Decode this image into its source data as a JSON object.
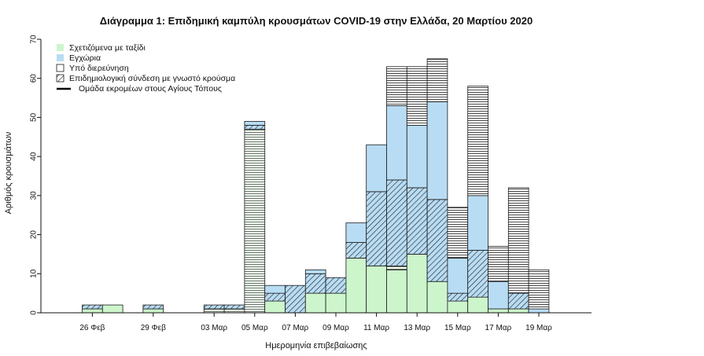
{
  "colors": {
    "travel": "#ccf5cc",
    "local": "#b8dcf3",
    "investigation": "#ffffff",
    "epilink": "#b8dcf3",
    "cluster": "#000000",
    "line": "#1a1a1a"
  },
  "chart_data": {
    "type": "bar",
    "stacked": true,
    "title": "Διάγραμμα 1: Επιδημική καμπύλη κρουσμάτων COVID-19 στην Ελλάδα, 20 Μαρτίου 2020",
    "xlabel": "Ημερομηνία επιβεβαίωσης",
    "ylabel": "Αριθμός κρουσμάτων",
    "ylim": [
      0,
      70
    ],
    "yticks": [
      0,
      10,
      20,
      30,
      40,
      50,
      60,
      70
    ],
    "xtick_labels": [
      {
        "day": 0,
        "label": "26 Φεβ"
      },
      {
        "day": 3,
        "label": "29 Φεβ"
      },
      {
        "day": 6,
        "label": "03 Μαρ"
      },
      {
        "day": 8,
        "label": "05 Μαρ"
      },
      {
        "day": 10,
        "label": "07 Μαρ"
      },
      {
        "day": 12,
        "label": "09 Μαρ"
      },
      {
        "day": 14,
        "label": "11 Μαρ"
      },
      {
        "day": 16,
        "label": "13 Μαρ"
      },
      {
        "day": 18,
        "label": "15 Μαρ"
      },
      {
        "day": 20,
        "label": "17 Μαρ"
      },
      {
        "day": 22,
        "label": "19 Μαρ"
      }
    ],
    "legend": [
      {
        "key": "travel",
        "label": "Σχετιζόμενα με ταξίδι"
      },
      {
        "key": "local",
        "label": "Εγχώρια"
      },
      {
        "key": "investigation",
        "label": "Υπό διερεύνηση"
      },
      {
        "key": "epilink",
        "label": "Επιδημιολογική σύνδεση με γνωστό κρούσμα"
      },
      {
        "key": "cluster",
        "label": "Ομάδα εκρομέων στους Αγίους Τόπους"
      }
    ],
    "legend_position": "top-left",
    "grid": false,
    "bars": [
      {
        "day": 0,
        "travel": 1,
        "epilink": 1
      },
      {
        "day": 1,
        "travel": 2
      },
      {
        "day": 3,
        "travel": 1,
        "epilink": 1
      },
      {
        "day": 6,
        "epilink": 1,
        "cluster": 1
      },
      {
        "day": 7,
        "epilink": 1,
        "cluster": 1
      },
      {
        "day": 8,
        "epilink": 1,
        "cluster": 47,
        "local": 1
      },
      {
        "day": 9,
        "travel": 3,
        "epilink": 2,
        "local": 2
      },
      {
        "day": 10,
        "epilink": 7
      },
      {
        "day": 11,
        "travel": 5,
        "epilink": 5,
        "local": 1
      },
      {
        "day": 12,
        "travel": 5,
        "epilink": 4
      },
      {
        "day": 13,
        "travel": 14,
        "epilink": 4,
        "local": 5
      },
      {
        "day": 14,
        "travel": 12,
        "epilink": 19,
        "local": 12
      },
      {
        "day": 15,
        "travel": 11,
        "cluster": 1,
        "epilink": 22,
        "local": 19,
        "investigation": 10
      },
      {
        "day": 16,
        "travel": 15,
        "epilink": 17,
        "local": 16,
        "investigation": 15
      },
      {
        "day": 17,
        "travel": 8,
        "epilink": 21,
        "local": 25,
        "investigation": 11
      },
      {
        "day": 18,
        "travel": 3,
        "epilink": 2,
        "local": 9,
        "investigation": 13
      },
      {
        "day": 19,
        "travel": 4,
        "epilink": 12,
        "local": 14,
        "investigation": 28
      },
      {
        "day": 20,
        "travel": 1,
        "local": 7,
        "investigation": 9
      },
      {
        "day": 21,
        "travel": 1,
        "epilink": 4,
        "investigation": 27
      },
      {
        "day": 22,
        "local": 1,
        "investigation": 10
      }
    ]
  }
}
